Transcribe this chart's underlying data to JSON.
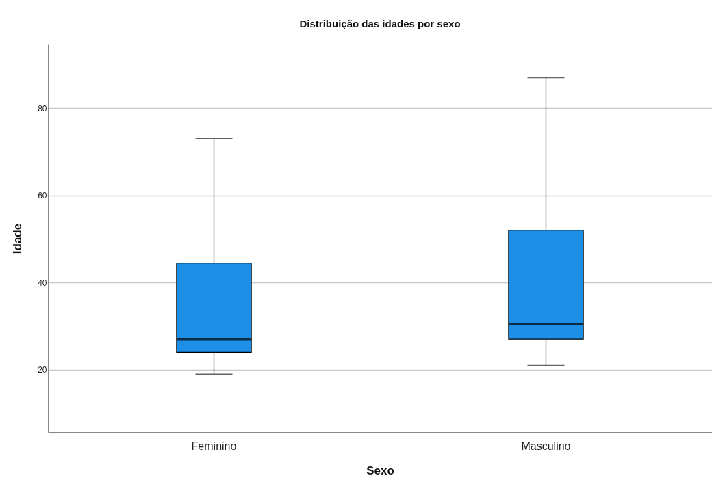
{
  "chart_data": {
    "type": "box",
    "title": "Distribuição das idades por sexo",
    "xlabel": "Sexo",
    "ylabel": "Idade",
    "categories": [
      "Feminino",
      "Masculino"
    ],
    "series": [
      {
        "color": "#1e8fe6",
        "boxes": [
          {
            "low": 19,
            "q1": 24,
            "median": 27,
            "q3": 44.5,
            "high": 73
          },
          {
            "low": 21,
            "q1": 27,
            "median": 30.5,
            "q3": 52,
            "high": 87
          }
        ]
      }
    ],
    "ylim": [
      5.7,
      94.6
    ],
    "yticks": [
      20,
      40,
      60,
      80
    ],
    "grid": "y"
  }
}
